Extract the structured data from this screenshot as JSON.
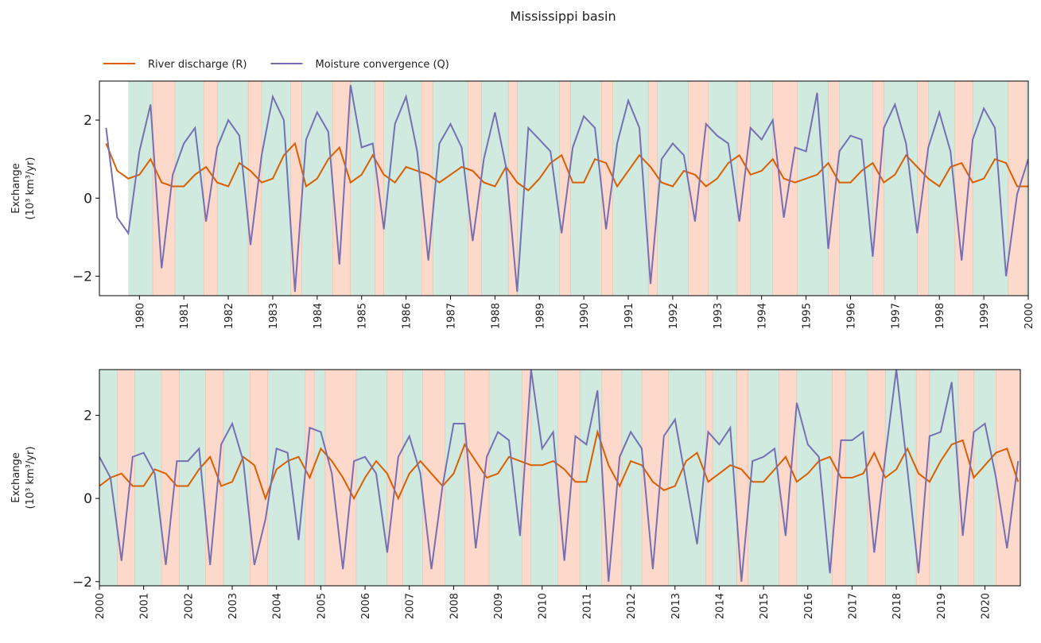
{
  "chart_data": [
    {
      "type": "line",
      "title": "Mississippi basin",
      "legend": "upper left",
      "ylabel": [
        "Exchange",
        "(10³ km³/yr)"
      ],
      "xlim": [
        1979.1,
        2000
      ],
      "ylim": [
        -2.5,
        3
      ],
      "xticks": [
        1980,
        1981,
        1982,
        1983,
        1984,
        1985,
        1986,
        1987,
        1988,
        1989,
        1990,
        1991,
        1992,
        1993,
        1994,
        1995,
        1996,
        1997,
        1998,
        1999,
        2000
      ],
      "yticks": [
        {
          "value": -2,
          "label": "−2"
        },
        0,
        2
      ],
      "shading": {
        "base_color": "#d0eadf",
        "base_span": [
          1979.75,
          2000
        ],
        "color": "#fdd9cc",
        "spans": [
          [
            1980.3,
            1980.8
          ],
          [
            1981.45,
            1981.75
          ],
          [
            1982.45,
            1982.75
          ],
          [
            1983.4,
            1983.65
          ],
          [
            1984.35,
            1984.75
          ],
          [
            1985.3,
            1985.5
          ],
          [
            1986.35,
            1986.6
          ],
          [
            1987.4,
            1987.7
          ],
          [
            1988.3,
            1988.5
          ],
          [
            1989.45,
            1989.7
          ],
          [
            1990.4,
            1990.65
          ],
          [
            1991.45,
            1991.65
          ],
          [
            1992.35,
            1992.8
          ],
          [
            1993.45,
            1993.75
          ],
          [
            1994.25,
            1994.8
          ],
          [
            1995.5,
            1995.75
          ],
          [
            1996.5,
            1996.75
          ],
          [
            1997.5,
            1997.75
          ],
          [
            1998.35,
            1998.75
          ],
          [
            1999.55,
            1999.95
          ]
        ]
      },
      "x": [
        1979.25,
        1979.5,
        1979.75,
        1980,
        1980.25,
        1980.5,
        1980.75,
        1981,
        1981.25,
        1981.5,
        1981.75,
        1982,
        1982.25,
        1982.5,
        1982.75,
        1983,
        1983.25,
        1983.5,
        1983.75,
        1984,
        1984.25,
        1984.5,
        1984.75,
        1985,
        1985.25,
        1985.5,
        1985.75,
        1986,
        1986.25,
        1986.5,
        1986.75,
        1987,
        1987.25,
        1987.5,
        1987.75,
        1988,
        1988.25,
        1988.5,
        1988.75,
        1989,
        1989.25,
        1989.5,
        1989.75,
        1990,
        1990.25,
        1990.5,
        1990.75,
        1991,
        1991.25,
        1991.5,
        1991.75,
        1992,
        1992.25,
        1992.5,
        1992.75,
        1993,
        1993.25,
        1993.5,
        1993.75,
        1994,
        1994.25,
        1994.5,
        1994.75,
        1995,
        1995.25,
        1995.5,
        1995.75,
        1996,
        1996.25,
        1996.5,
        1996.75,
        1997,
        1997.25,
        1997.5,
        1997.75,
        1998,
        1998.25,
        1998.5,
        1998.75,
        1999,
        1999.25,
        1999.5,
        1999.75,
        2000
      ],
      "series": [
        {
          "name": "River discharge (R)",
          "color": "#d95f02",
          "values": [
            1.4,
            0.7,
            0.5,
            0.6,
            1.0,
            0.4,
            0.3,
            0.3,
            0.6,
            0.8,
            0.4,
            0.3,
            0.9,
            0.7,
            0.4,
            0.5,
            1.1,
            1.4,
            0.3,
            0.5,
            1.0,
            1.3,
            0.4,
            0.6,
            1.1,
            0.6,
            0.4,
            0.8,
            0.7,
            0.6,
            0.4,
            0.6,
            0.8,
            0.7,
            0.4,
            0.3,
            0.8,
            0.4,
            0.2,
            0.5,
            0.9,
            1.1,
            0.4,
            0.4,
            1.0,
            0.9,
            0.3,
            0.7,
            1.1,
            0.8,
            0.4,
            0.3,
            0.7,
            0.6,
            0.3,
            0.5,
            0.9,
            1.1,
            0.6,
            0.7,
            1.0,
            0.5,
            0.4,
            0.5,
            0.6,
            0.9,
            0.4,
            0.4,
            0.7,
            0.9,
            0.4,
            0.6,
            1.1,
            0.8,
            0.5,
            0.3,
            0.8,
            0.9,
            0.4,
            0.5,
            1.0,
            0.9,
            0.3,
            0.3
          ]
        },
        {
          "name": "Moisture convergence (Q)",
          "color": "#7570b3",
          "values": [
            1.8,
            -0.5,
            -0.9,
            1.2,
            2.4,
            -1.8,
            0.6,
            1.4,
            1.8,
            -0.6,
            1.3,
            2.0,
            1.6,
            -1.2,
            1.1,
            2.6,
            2.0,
            -2.4,
            1.5,
            2.2,
            1.7,
            -1.7,
            2.9,
            1.3,
            1.4,
            -0.8,
            1.9,
            2.6,
            1.2,
            -1.6,
            1.4,
            1.9,
            1.3,
            -1.1,
            1.0,
            2.2,
            0.8,
            -2.4,
            1.8,
            1.5,
            1.2,
            -0.9,
            1.3,
            2.1,
            1.8,
            -0.8,
            1.4,
            2.5,
            1.8,
            -2.2,
            1.0,
            1.4,
            1.1,
            -0.6,
            1.9,
            1.6,
            1.4,
            -0.6,
            1.8,
            1.5,
            2.0,
            -0.5,
            1.3,
            1.2,
            2.7,
            -1.3,
            1.2,
            1.6,
            1.5,
            -1.5,
            1.8,
            2.4,
            1.4,
            -0.9,
            1.3,
            2.2,
            1.2,
            -1.6,
            1.5,
            2.3,
            1.8,
            -2.0,
            0.1,
            1.0
          ]
        }
      ]
    },
    {
      "type": "line",
      "ylabel": [
        "Exchange",
        "(10³ km³/yr)"
      ],
      "xlim": [
        2000,
        2020.8
      ],
      "ylim": [
        -2.1,
        3.1
      ],
      "xticks": [
        2000,
        2001,
        2002,
        2003,
        2004,
        2005,
        2006,
        2007,
        2008,
        2009,
        2010,
        2011,
        2012,
        2013,
        2014,
        2015,
        2016,
        2017,
        2018,
        2019,
        2020
      ],
      "yticks": [
        {
          "value": -2,
          "label": "−2"
        },
        0,
        2
      ],
      "shading": {
        "base_color": "#d0eadf",
        "base_span": [
          2000,
          2020.8
        ],
        "color": "#fdd9cc",
        "spans": [
          [
            2000.4,
            2000.8
          ],
          [
            2001.4,
            2001.8
          ],
          [
            2002.4,
            2002.8
          ],
          [
            2003.4,
            2003.8
          ],
          [
            2004.65,
            2004.85
          ],
          [
            2005.1,
            2005.8
          ],
          [
            2006.5,
            2006.85
          ],
          [
            2007.3,
            2007.8
          ],
          [
            2008.25,
            2008.8
          ],
          [
            2009.55,
            2009.75
          ],
          [
            2010.35,
            2010.85
          ],
          [
            2011.35,
            2011.8
          ],
          [
            2012.25,
            2012.85
          ],
          [
            2013.7,
            2013.85
          ],
          [
            2014.4,
            2014.65
          ],
          [
            2015.35,
            2015.75
          ],
          [
            2016.55,
            2016.85
          ],
          [
            2017.35,
            2017.75
          ],
          [
            2018.45,
            2018.75
          ],
          [
            2019.4,
            2019.75
          ],
          [
            2020.25,
            2020.8
          ]
        ]
      },
      "x": [
        2000,
        2000.25,
        2000.5,
        2000.75,
        2001,
        2001.25,
        2001.5,
        2001.75,
        2002,
        2002.25,
        2002.5,
        2002.75,
        2003,
        2003.25,
        2003.5,
        2003.75,
        2004,
        2004.25,
        2004.5,
        2004.75,
        2005,
        2005.25,
        2005.5,
        2005.75,
        2006,
        2006.25,
        2006.5,
        2006.75,
        2007,
        2007.25,
        2007.5,
        2007.75,
        2008,
        2008.25,
        2008.5,
        2008.75,
        2009,
        2009.25,
        2009.5,
        2009.75,
        2010,
        2010.25,
        2010.5,
        2010.75,
        2011,
        2011.25,
        2011.5,
        2011.75,
        2012,
        2012.25,
        2012.5,
        2012.75,
        2013,
        2013.25,
        2013.5,
        2013.75,
        2014,
        2014.25,
        2014.5,
        2014.75,
        2015,
        2015.25,
        2015.5,
        2015.75,
        2016,
        2016.25,
        2016.5,
        2016.75,
        2017,
        2017.25,
        2017.5,
        2017.75,
        2018,
        2018.25,
        2018.5,
        2018.75,
        2019,
        2019.25,
        2019.5,
        2019.75,
        2020,
        2020.25,
        2020.5,
        2020.75
      ],
      "series": [
        {
          "name": "River discharge (R)",
          "color": "#d95f02",
          "values": [
            0.3,
            0.5,
            0.6,
            0.3,
            0.3,
            0.7,
            0.6,
            0.3,
            0.3,
            0.7,
            1.0,
            0.3,
            0.4,
            1.0,
            0.8,
            0.0,
            0.7,
            0.9,
            1.0,
            0.5,
            1.2,
            0.9,
            0.5,
            0.0,
            0.5,
            0.9,
            0.6,
            0.0,
            0.6,
            0.9,
            0.6,
            0.3,
            0.6,
            1.3,
            0.9,
            0.5,
            0.6,
            1.0,
            0.9,
            0.8,
            0.8,
            0.9,
            0.7,
            0.4,
            0.4,
            1.6,
            0.8,
            0.3,
            0.9,
            0.8,
            0.4,
            0.2,
            0.3,
            0.9,
            1.1,
            0.4,
            0.6,
            0.8,
            0.7,
            0.4,
            0.4,
            0.7,
            1.0,
            0.4,
            0.6,
            0.9,
            1.0,
            0.5,
            0.5,
            0.6,
            1.1,
            0.5,
            0.7,
            1.2,
            0.6,
            0.4,
            0.9,
            1.3,
            1.4,
            0.5,
            0.8,
            1.1,
            1.2,
            0.4
          ]
        },
        {
          "name": "Moisture convergence (Q)",
          "color": "#7570b3",
          "values": [
            1.0,
            0.5,
            -1.5,
            1.0,
            1.1,
            0.6,
            -1.6,
            0.9,
            0.9,
            1.2,
            -1.6,
            1.3,
            1.8,
            0.9,
            -1.6,
            -0.5,
            1.2,
            1.1,
            -1.0,
            1.7,
            1.6,
            0.6,
            -1.7,
            0.9,
            1.0,
            0.6,
            -1.3,
            1.0,
            1.5,
            0.6,
            -1.7,
            0.3,
            1.8,
            1.8,
            -1.2,
            1.0,
            1.6,
            1.4,
            -0.9,
            3.1,
            1.2,
            1.6,
            -1.5,
            1.5,
            1.3,
            2.6,
            -2.0,
            1.0,
            1.6,
            1.2,
            -1.7,
            1.5,
            1.9,
            0.4,
            -1.1,
            1.6,
            1.3,
            1.7,
            -2.0,
            0.9,
            1.0,
            1.2,
            -0.9,
            2.3,
            1.3,
            1.0,
            -1.8,
            1.4,
            1.4,
            1.6,
            -1.3,
            1.0,
            3.1,
            0.7,
            -1.8,
            1.5,
            1.6,
            2.8,
            -0.9,
            1.6,
            1.8,
            0.5,
            -1.2,
            0.9
          ]
        }
      ]
    }
  ]
}
